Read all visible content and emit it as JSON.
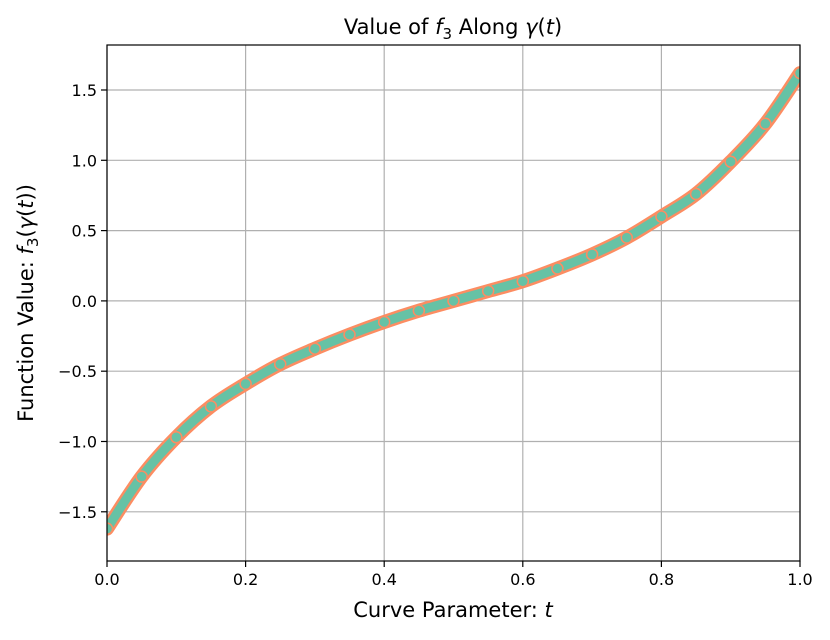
{
  "chart_data": {
    "type": "line",
    "title_parts": {
      "pre": "Value of ",
      "f": "f",
      "fsub": "3",
      "mid": " Along ",
      "gamma": "γ",
      "post1": "(",
      "t": "t",
      "post2": ")"
    },
    "xlabel_parts": {
      "pre": "Curve Parameter: ",
      "t": "t"
    },
    "ylabel_parts": {
      "pre": "Function Value: ",
      "f": "f",
      "fsub": "3",
      "p1": "(",
      "gamma": "γ",
      "p2": "(",
      "t": "t",
      "p3": "))"
    },
    "xlim": [
      0.0,
      1.0
    ],
    "ylim": [
      -1.85,
      1.82
    ],
    "xticks": [
      0.0,
      0.2,
      0.4,
      0.6,
      0.8,
      1.0
    ],
    "xtick_labels": [
      "0.0",
      "0.2",
      "0.4",
      "0.6",
      "0.8",
      "1.0"
    ],
    "yticks": [
      -1.5,
      -1.0,
      -0.5,
      0.0,
      0.5,
      1.0,
      1.5
    ],
    "ytick_labels": [
      "−1.5",
      "−1.0",
      "−0.5",
      "0.0",
      "0.5",
      "1.0",
      "1.5"
    ],
    "grid": true,
    "series": [
      {
        "color": "#66c2a5",
        "marker_edge_color": "#fc8d62",
        "x": [
          0.0,
          0.05,
          0.1,
          0.15,
          0.2,
          0.25,
          0.3,
          0.35,
          0.4,
          0.45,
          0.5,
          0.55,
          0.6,
          0.65,
          0.7,
          0.75,
          0.8,
          0.85,
          0.9,
          0.95,
          1.0
        ],
        "y": [
          -1.62,
          -1.25,
          -0.97,
          -0.75,
          -0.59,
          -0.45,
          -0.34,
          -0.24,
          -0.15,
          -0.07,
          0.0,
          0.07,
          0.14,
          0.23,
          0.33,
          0.45,
          0.6,
          0.76,
          0.99,
          1.26,
          1.62
        ]
      }
    ]
  }
}
